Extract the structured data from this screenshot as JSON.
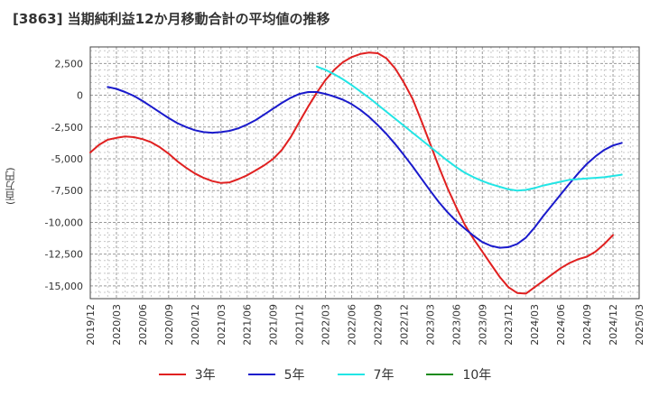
{
  "title": "[3863]  当期純利益12か月移動合計の平均値の推移",
  "chart_data": {
    "type": "line",
    "title": "[3863]  当期純利益12か月移動合計の平均値の推移",
    "ylabel": "(百万円)",
    "xlabel": "",
    "ylim": [
      -16000,
      3800
    ],
    "xlim": [
      "2019-12",
      "2025-03"
    ],
    "grid": true,
    "legend_position": "bottom",
    "y_ticks": [
      2500,
      0,
      -2500,
      -5000,
      -7500,
      -10000,
      -12500,
      -15000
    ],
    "y_tick_labels": [
      "2,500",
      "0",
      "-2,500",
      "-5,000",
      "-7,500",
      "-10,000",
      "-12,500",
      "-15,000"
    ],
    "x_ticks": [
      "2019/12",
      "2020/03",
      "2020/06",
      "2020/09",
      "2020/12",
      "2021/03",
      "2021/06",
      "2021/09",
      "2021/12",
      "2022/03",
      "2022/06",
      "2022/09",
      "2022/12",
      "2023/03",
      "2023/06",
      "2023/09",
      "2023/12",
      "2024/03",
      "2024/06",
      "2024/09",
      "2024/12",
      "2025/03"
    ],
    "series": [
      {
        "name": "3年",
        "color": "#e02020",
        "points": [
          [
            "2019/12",
            -4500
          ],
          [
            "2020/01",
            -3900
          ],
          [
            "2020/02",
            -3500
          ],
          [
            "2020/03",
            -3350
          ],
          [
            "2020/04",
            -3250
          ],
          [
            "2020/05",
            -3300
          ],
          [
            "2020/06",
            -3450
          ],
          [
            "2020/07",
            -3700
          ],
          [
            "2020/08",
            -4100
          ],
          [
            "2020/09",
            -4600
          ],
          [
            "2020/10",
            -5200
          ],
          [
            "2020/11",
            -5700
          ],
          [
            "2020/12",
            -6150
          ],
          [
            "2021/01",
            -6500
          ],
          [
            "2021/02",
            -6750
          ],
          [
            "2021/03",
            -6900
          ],
          [
            "2021/04",
            -6850
          ],
          [
            "2021/05",
            -6600
          ],
          [
            "2021/06",
            -6300
          ],
          [
            "2021/07",
            -5900
          ],
          [
            "2021/08",
            -5500
          ],
          [
            "2021/09",
            -5000
          ],
          [
            "2021/10",
            -4300
          ],
          [
            "2021/11",
            -3300
          ],
          [
            "2021/12",
            -2100
          ],
          [
            "2022/01",
            -900
          ],
          [
            "2022/02",
            200
          ],
          [
            "2022/03",
            1200
          ],
          [
            "2022/04",
            2000
          ],
          [
            "2022/05",
            2600
          ],
          [
            "2022/06",
            3000
          ],
          [
            "2022/07",
            3250
          ],
          [
            "2022/08",
            3350
          ],
          [
            "2022/09",
            3300
          ],
          [
            "2022/10",
            2900
          ],
          [
            "2022/11",
            2100
          ],
          [
            "2022/12",
            1000
          ],
          [
            "2023/01",
            -300
          ],
          [
            "2023/02",
            -2000
          ],
          [
            "2023/03",
            -3800
          ],
          [
            "2023/04",
            -5600
          ],
          [
            "2023/05",
            -7300
          ],
          [
            "2023/06",
            -8800
          ],
          [
            "2023/07",
            -10200
          ],
          [
            "2023/08",
            -11300
          ],
          [
            "2023/09",
            -12300
          ],
          [
            "2023/10",
            -13300
          ],
          [
            "2023/11",
            -14300
          ],
          [
            "2023/12",
            -15100
          ],
          [
            "2024/01",
            -15550
          ],
          [
            "2024/02",
            -15600
          ],
          [
            "2024/03",
            -15100
          ],
          [
            "2024/04",
            -14600
          ],
          [
            "2024/05",
            -14100
          ],
          [
            "2024/06",
            -13600
          ],
          [
            "2024/07",
            -13200
          ],
          [
            "2024/08",
            -12900
          ],
          [
            "2024/09",
            -12700
          ],
          [
            "2024/10",
            -12300
          ],
          [
            "2024/11",
            -11700
          ],
          [
            "2024/12",
            -11000
          ]
        ]
      },
      {
        "name": "5年",
        "color": "#1a1acc",
        "points": [
          [
            "2020/02",
            650
          ],
          [
            "2020/03",
            500
          ],
          [
            "2020/04",
            250
          ],
          [
            "2020/05",
            -50
          ],
          [
            "2020/06",
            -450
          ],
          [
            "2020/07",
            -900
          ],
          [
            "2020/08",
            -1350
          ],
          [
            "2020/09",
            -1800
          ],
          [
            "2020/10",
            -2200
          ],
          [
            "2020/11",
            -2500
          ],
          [
            "2020/12",
            -2750
          ],
          [
            "2021/01",
            -2900
          ],
          [
            "2021/02",
            -2950
          ],
          [
            "2021/03",
            -2900
          ],
          [
            "2021/04",
            -2800
          ],
          [
            "2021/05",
            -2600
          ],
          [
            "2021/06",
            -2300
          ],
          [
            "2021/07",
            -1950
          ],
          [
            "2021/08",
            -1500
          ],
          [
            "2021/09",
            -1050
          ],
          [
            "2021/10",
            -600
          ],
          [
            "2021/11",
            -200
          ],
          [
            "2021/12",
            100
          ],
          [
            "2022/01",
            250
          ],
          [
            "2022/02",
            250
          ],
          [
            "2022/03",
            100
          ],
          [
            "2022/04",
            -100
          ],
          [
            "2022/05",
            -350
          ],
          [
            "2022/06",
            -700
          ],
          [
            "2022/07",
            -1150
          ],
          [
            "2022/08",
            -1700
          ],
          [
            "2022/09",
            -2350
          ],
          [
            "2022/10",
            -3050
          ],
          [
            "2022/11",
            -3850
          ],
          [
            "2022/12",
            -4700
          ],
          [
            "2023/01",
            -5600
          ],
          [
            "2023/02",
            -6550
          ],
          [
            "2023/03",
            -7500
          ],
          [
            "2023/04",
            -8400
          ],
          [
            "2023/05",
            -9200
          ],
          [
            "2023/06",
            -9900
          ],
          [
            "2023/07",
            -10500
          ],
          [
            "2023/08",
            -11050
          ],
          [
            "2023/09",
            -11550
          ],
          [
            "2023/10",
            -11850
          ],
          [
            "2023/11",
            -12000
          ],
          [
            "2023/12",
            -11950
          ],
          [
            "2024/01",
            -11700
          ],
          [
            "2024/02",
            -11200
          ],
          [
            "2024/03",
            -10400
          ],
          [
            "2024/04",
            -9500
          ],
          [
            "2024/05",
            -8650
          ],
          [
            "2024/06",
            -7800
          ],
          [
            "2024/07",
            -6950
          ],
          [
            "2024/08",
            -6150
          ],
          [
            "2024/09",
            -5400
          ],
          [
            "2024/10",
            -4800
          ],
          [
            "2024/11",
            -4300
          ],
          [
            "2024/12",
            -3950
          ],
          [
            "2025/01",
            -3750
          ]
        ]
      },
      {
        "name": "7年",
        "color": "#22e5e5",
        "points": [
          [
            "2022/02",
            2250
          ],
          [
            "2022/03",
            2000
          ],
          [
            "2022/04",
            1650
          ],
          [
            "2022/05",
            1250
          ],
          [
            "2022/06",
            800
          ],
          [
            "2022/07",
            300
          ],
          [
            "2022/08",
            -200
          ],
          [
            "2022/09",
            -750
          ],
          [
            "2022/10",
            -1300
          ],
          [
            "2022/11",
            -1850
          ],
          [
            "2022/12",
            -2400
          ],
          [
            "2023/01",
            -2950
          ],
          [
            "2023/02",
            -3500
          ],
          [
            "2023/03",
            -4050
          ],
          [
            "2023/04",
            -4600
          ],
          [
            "2023/05",
            -5150
          ],
          [
            "2023/06",
            -5650
          ],
          [
            "2023/07",
            -6100
          ],
          [
            "2023/08",
            -6450
          ],
          [
            "2023/09",
            -6750
          ],
          [
            "2023/10",
            -7000
          ],
          [
            "2023/11",
            -7200
          ],
          [
            "2023/12",
            -7400
          ],
          [
            "2024/01",
            -7500
          ],
          [
            "2024/02",
            -7450
          ],
          [
            "2024/03",
            -7300
          ],
          [
            "2024/04",
            -7100
          ],
          [
            "2024/05",
            -6950
          ],
          [
            "2024/06",
            -6800
          ],
          [
            "2024/07",
            -6650
          ],
          [
            "2024/08",
            -6600
          ],
          [
            "2024/09",
            -6550
          ],
          [
            "2024/10",
            -6500
          ],
          [
            "2024/11",
            -6450
          ],
          [
            "2024/12",
            -6350
          ],
          [
            "2025/01",
            -6250
          ]
        ]
      },
      {
        "name": "10年",
        "color": "#1a8a1a",
        "points": []
      }
    ]
  }
}
